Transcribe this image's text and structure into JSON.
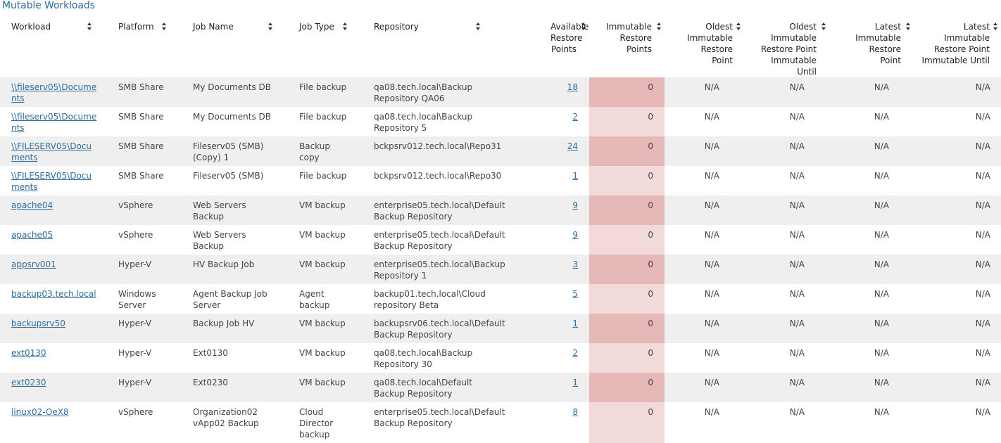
{
  "title": "Mutable Workloads",
  "columns": [
    "Workload",
    "Platform",
    "Job Name",
    "Job Type",
    "Repository",
    "Available Restore Points",
    "Immutable Restore Points",
    "Oldest Immutable Restore Point",
    "Oldest Immutable Restore Point Immutable Until",
    "Latest Immutable Restore Point",
    "Latest Immutable Restore Point Immutable Until"
  ],
  "rows": [
    {
      "workload": "\\\\fileserv05\\Documents",
      "platform": "SMB Share",
      "job": "My Documents DB",
      "type": "File backup",
      "repo": "qa08.tech.local\\Backup Repository QA06",
      "avail": "18",
      "imm": "0",
      "o1": "N/A",
      "o2": "N/A",
      "l1": "N/A",
      "l2": "N/A"
    },
    {
      "workload": "\\\\fileserv05\\Documents",
      "platform": "SMB Share",
      "job": "My Documents DB",
      "type": "File backup",
      "repo": "qa08.tech.local\\Backup Repository 5",
      "avail": "2",
      "imm": "0",
      "o1": "N/A",
      "o2": "N/A",
      "l1": "N/A",
      "l2": "N/A"
    },
    {
      "workload": "\\\\FILESERV05\\Documents",
      "platform": "SMB Share",
      "job": "Fileserv05 (SMB) (Copy) 1",
      "type": "Backup copy",
      "repo": "bckpsrv012.tech.local\\Repo31",
      "avail": "24",
      "imm": "0",
      "o1": "N/A",
      "o2": "N/A",
      "l1": "N/A",
      "l2": "N/A"
    },
    {
      "workload": "\\\\FILESERV05\\Documents",
      "platform": "SMB Share",
      "job": "Fileserv05 (SMB)",
      "type": "File backup",
      "repo": "bckpsrv012.tech.local\\Repo30",
      "avail": "1",
      "imm": "0",
      "o1": "N/A",
      "o2": "N/A",
      "l1": "N/A",
      "l2": "N/A"
    },
    {
      "workload": "apache04",
      "platform": "vSphere",
      "job": "Web Servers Backup",
      "type": "VM backup",
      "repo": "enterprise05.tech.local\\Default Backup Repository",
      "avail": "9",
      "imm": "0",
      "o1": "N/A",
      "o2": "N/A",
      "l1": "N/A",
      "l2": "N/A"
    },
    {
      "workload": "apache05",
      "platform": "vSphere",
      "job": "Web Servers Backup",
      "type": "VM backup",
      "repo": "enterprise05.tech.local\\Default Backup Repository",
      "avail": "9",
      "imm": "0",
      "o1": "N/A",
      "o2": "N/A",
      "l1": "N/A",
      "l2": "N/A"
    },
    {
      "workload": "appsrv001",
      "platform": "Hyper-V",
      "job": "HV Backup Job",
      "type": "VM backup",
      "repo": "enterprise05.tech.local\\Backup Repository 1",
      "avail": "3",
      "imm": "0",
      "o1": "N/A",
      "o2": "N/A",
      "l1": "N/A",
      "l2": "N/A"
    },
    {
      "workload": "backup03.tech.local",
      "platform": "Windows Server",
      "job": "Agent Backup Job Server",
      "type": "Agent backup",
      "repo": "backup01.tech.local\\Cloud repository Beta",
      "avail": "5",
      "imm": "0",
      "o1": "N/A",
      "o2": "N/A",
      "l1": "N/A",
      "l2": "N/A"
    },
    {
      "workload": "backupsrv50",
      "platform": "Hyper-V",
      "job": "Backup Job HV",
      "type": "VM backup",
      "repo": "backupsrv06.tech.local\\Default Backup Repository",
      "avail": "1",
      "imm": "0",
      "o1": "N/A",
      "o2": "N/A",
      "l1": "N/A",
      "l2": "N/A"
    },
    {
      "workload": "ext0130",
      "platform": "Hyper-V",
      "job": "Ext0130",
      "type": "VM backup",
      "repo": "qa08.tech.local\\Backup Repository 30",
      "avail": "2",
      "imm": "0",
      "o1": "N/A",
      "o2": "N/A",
      "l1": "N/A",
      "l2": "N/A"
    },
    {
      "workload": "ext0230",
      "platform": "Hyper-V",
      "job": "Ext0230",
      "type": "VM backup",
      "repo": "qa08.tech.local\\Default Backup Repository",
      "avail": "1",
      "imm": "0",
      "o1": "N/A",
      "o2": "N/A",
      "l1": "N/A",
      "l2": "N/A"
    },
    {
      "workload": "linux02-OeX8",
      "platform": "vSphere",
      "job": "Organization02 vApp02 Backup",
      "type": "Cloud Director backup",
      "repo": "enterprise05.tech.local\\Default Backup Repository",
      "avail": "8",
      "imm": "0",
      "o1": "N/A",
      "o2": "N/A",
      "l1": "N/A",
      "l2": "N/A"
    }
  ]
}
